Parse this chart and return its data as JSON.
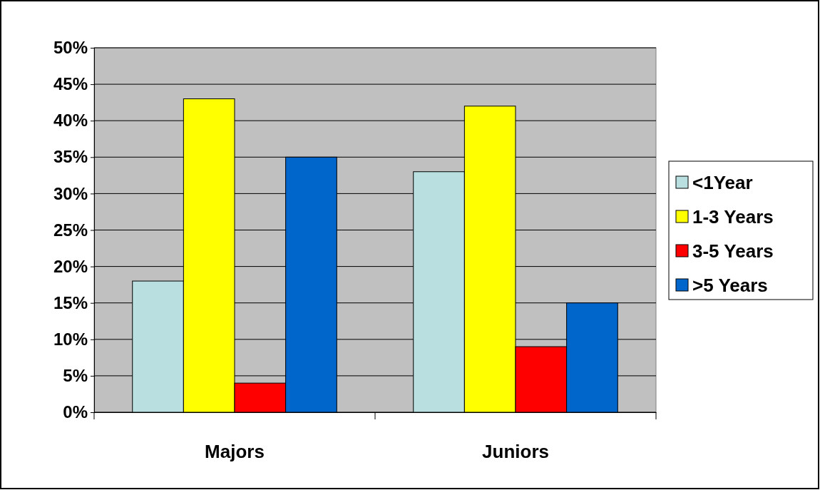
{
  "chart_data": {
    "type": "bar",
    "categories": [
      "Majors",
      "Juniors"
    ],
    "series": [
      {
        "name": "<1Year",
        "color": "#b9dfe0",
        "values": [
          18,
          33
        ]
      },
      {
        "name": "1-3 Years",
        "color": "#ffff00",
        "values": [
          43,
          42
        ]
      },
      {
        "name": "3-5 Years",
        "color": "#ff0000",
        "values": [
          4,
          9
        ]
      },
      {
        "name": ">5 Years",
        "color": "#0066cc",
        "values": [
          35,
          15
        ]
      }
    ],
    "ylim": [
      0,
      50
    ],
    "yticks": [
      {
        "value": 0,
        "label": "0%"
      },
      {
        "value": 5,
        "label": "5%"
      },
      {
        "value": 10,
        "label": "10%"
      },
      {
        "value": 15,
        "label": "15%"
      },
      {
        "value": 20,
        "label": "20%"
      },
      {
        "value": 25,
        "label": "25%"
      },
      {
        "value": 30,
        "label": "30%"
      },
      {
        "value": 35,
        "label": "35%"
      },
      {
        "value": 40,
        "label": "40%"
      },
      {
        "value": 45,
        "label": "45%"
      },
      {
        "value": 50,
        "label": "50%"
      }
    ],
    "grid": "y",
    "legend": "right"
  }
}
